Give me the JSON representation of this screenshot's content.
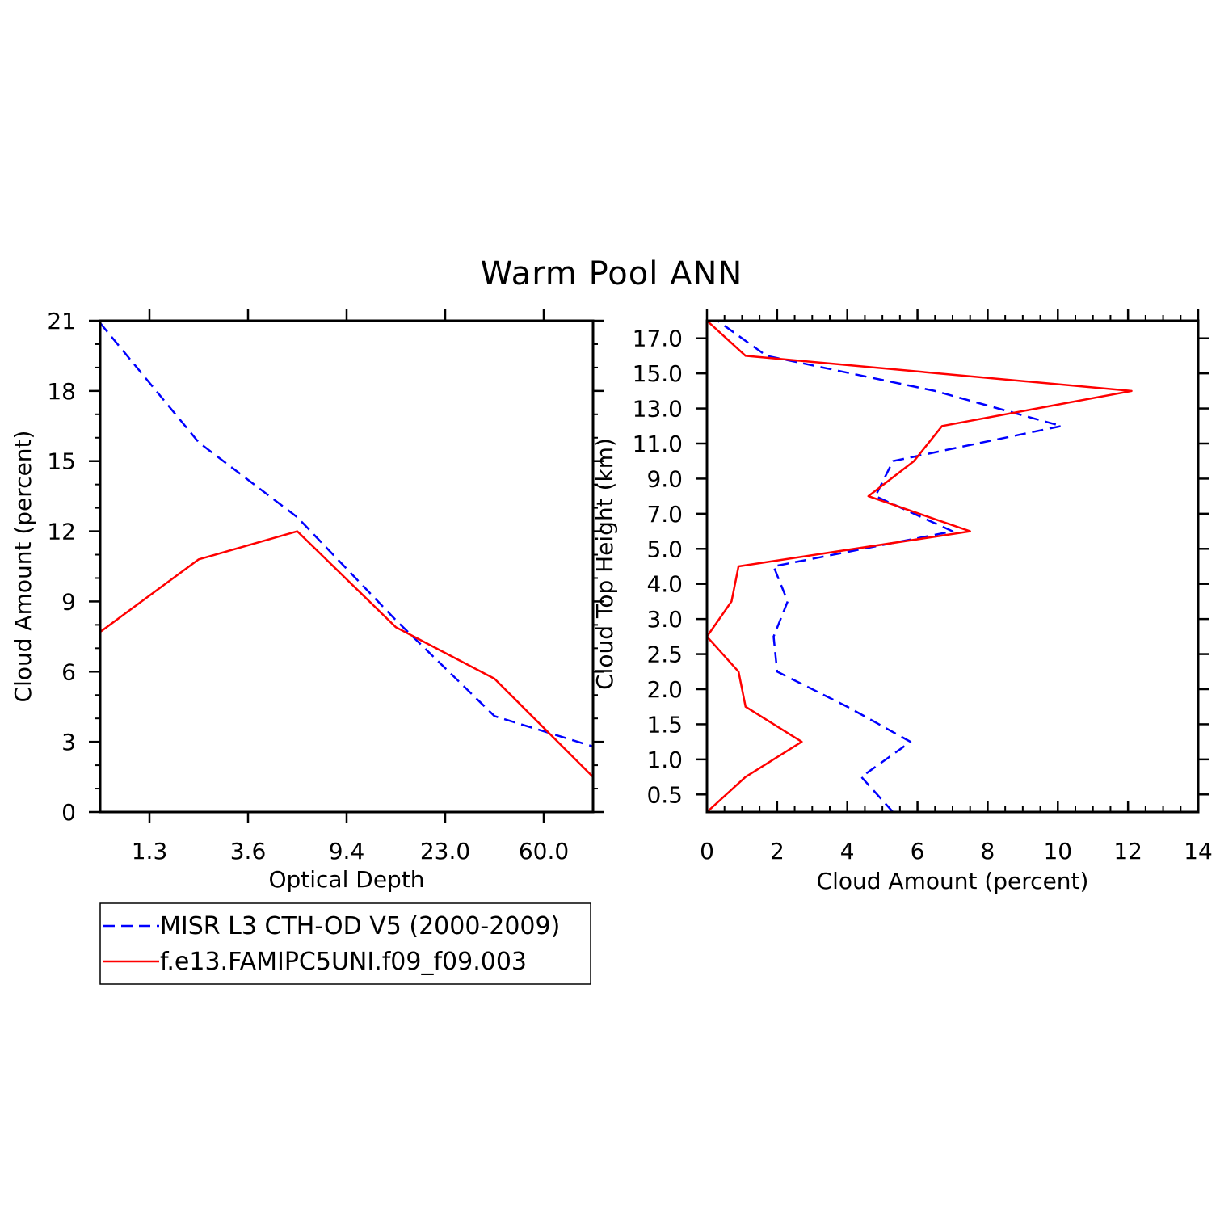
{
  "figure": {
    "title": "Warm Pool ANN"
  },
  "colors": {
    "obs": "#0000ff",
    "model": "#ff0000",
    "axis": "#000000"
  },
  "legend": {
    "entries": [
      {
        "label": "MISR L3 CTH-OD V5 (2000-2009)",
        "style": "dashed",
        "color": "#0000ff"
      },
      {
        "label": "f.e13.FAMIPC5UNI.f09_f09.003",
        "style": "solid",
        "color": "#ff0000"
      }
    ]
  },
  "chart_data": [
    {
      "type": "line",
      "xlabel": "Optical Depth",
      "ylabel": "Cloud Amount (percent)",
      "x_bins": 6,
      "xticks": [
        {
          "at": 1,
          "label": "1.3"
        },
        {
          "at": 2,
          "label": "3.6"
        },
        {
          "at": 3,
          "label": "9.4"
        },
        {
          "at": 4,
          "label": "23.0"
        },
        {
          "at": 5,
          "label": "60.0"
        }
      ],
      "xlim": [
        0.5,
        5.5
      ],
      "ylim": [
        0,
        21
      ],
      "yticks": [
        0,
        3,
        6,
        9,
        12,
        15,
        18,
        21
      ],
      "y_minor_step": 1,
      "series": [
        {
          "name": "MISR L3 CTH-OD V5 (2000-2009)",
          "style": "dashed",
          "x": [
            0.5,
            1.5,
            2.5,
            3.5,
            4.5,
            5.5
          ],
          "values": [
            20.9,
            15.8,
            12.6,
            8.2,
            4.1,
            2.8
          ]
        },
        {
          "name": "f.e13.FAMIPC5UNI.f09_f09.003",
          "style": "solid",
          "x": [
            0.5,
            1.5,
            2.5,
            3.5,
            4.5,
            5.5
          ],
          "values": [
            7.7,
            10.8,
            12.0,
            7.9,
            5.7,
            1.5
          ]
        }
      ]
    },
    {
      "type": "line",
      "orientation": "horizontal",
      "xlabel": "Cloud Amount (percent)",
      "ylabel": "Cloud Top Height (km)",
      "xlim": [
        0,
        14
      ],
      "xticks": [
        0,
        2,
        4,
        6,
        8,
        10,
        12,
        14
      ],
      "x_minor_step": 0.5,
      "ylim": [
        0,
        14
      ],
      "yticks": [
        {
          "at": 0.5,
          "label": "0.5"
        },
        {
          "at": 1.5,
          "label": "1.0"
        },
        {
          "at": 2.5,
          "label": "1.5"
        },
        {
          "at": 3.5,
          "label": "2.0"
        },
        {
          "at": 4.5,
          "label": "2.5"
        },
        {
          "at": 5.5,
          "label": "3.0"
        },
        {
          "at": 6.5,
          "label": "4.0"
        },
        {
          "at": 7.5,
          "label": "5.0"
        },
        {
          "at": 8.5,
          "label": "7.0"
        },
        {
          "at": 9.5,
          "label": "9.0"
        },
        {
          "at": 10.5,
          "label": "11.0"
        },
        {
          "at": 11.5,
          "label": "13.0"
        },
        {
          "at": 12.5,
          "label": "15.0"
        },
        {
          "at": 13.5,
          "label": "17.0"
        }
      ],
      "series": [
        {
          "name": "MISR L3 CTH-OD V5 (2000-2009)",
          "style": "dashed",
          "level": [
            0,
            1,
            2,
            3,
            4,
            5,
            6,
            7,
            8,
            9,
            10,
            11,
            12,
            13,
            14
          ],
          "values": [
            5.3,
            4.4,
            5.8,
            4.0,
            2.0,
            1.9,
            2.3,
            1.9,
            7.0,
            4.8,
            5.3,
            10.1,
            6.5,
            1.7,
            0.3
          ]
        },
        {
          "name": "f.e13.FAMIPC5UNI.f09_f09.003",
          "style": "solid",
          "level": [
            0,
            1,
            2,
            3,
            4,
            5,
            6,
            7,
            8,
            9,
            10,
            11,
            12,
            13,
            14
          ],
          "values": [
            0.0,
            1.1,
            2.7,
            1.1,
            0.9,
            0.0,
            0.7,
            0.9,
            7.5,
            4.6,
            5.9,
            6.7,
            12.1,
            1.1,
            0.0
          ]
        }
      ]
    }
  ]
}
